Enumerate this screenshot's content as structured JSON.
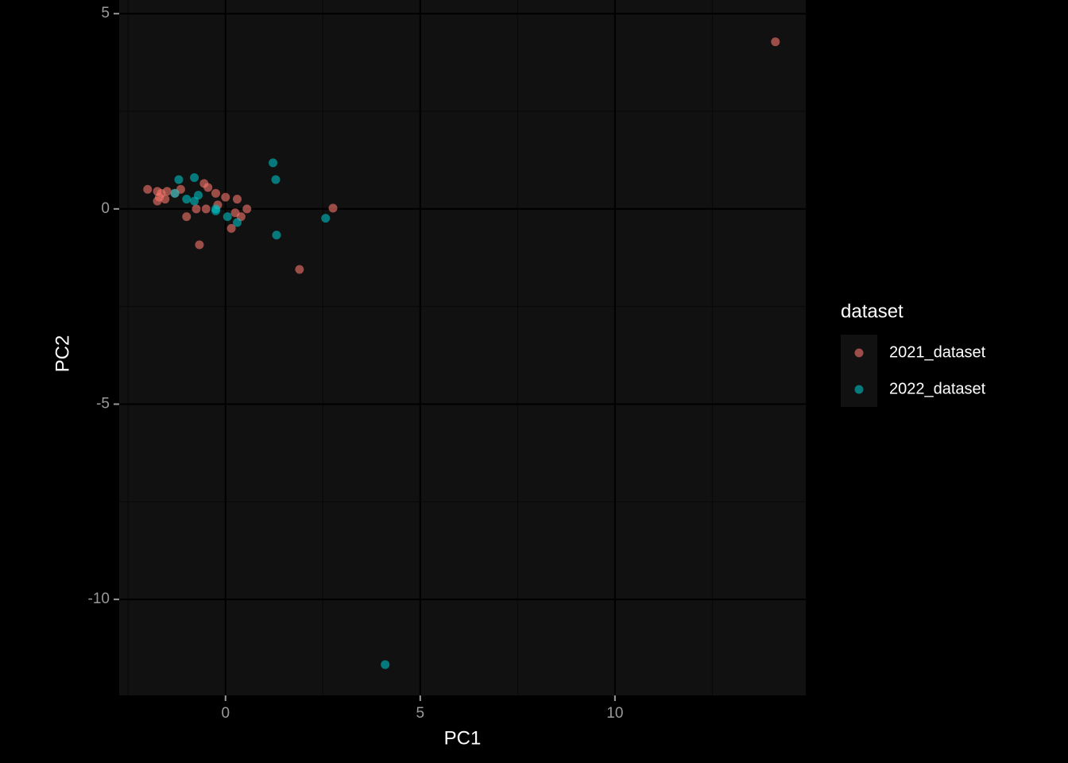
{
  "chart_data": {
    "type": "scatter",
    "x_label": "PC1",
    "y_label": "PC2",
    "legend_title": "dataset",
    "legend": "right",
    "xlim": [
      -2.73,
      14.9
    ],
    "ylim": [
      -12.46,
      5.35
    ],
    "xticks": [
      0,
      5,
      10
    ],
    "yticks": [
      5,
      0,
      -5,
      -10
    ],
    "xminor": [
      -2.5,
      2.5,
      7.5,
      12.5
    ],
    "yminor": [
      2.5,
      -2.5,
      -7.5
    ],
    "grid": true,
    "series": [
      {
        "name": "2021_dataset",
        "color": "#F8766D",
        "x": [
          -2.0,
          -1.75,
          -1.75,
          -1.7,
          -1.65,
          -1.55,
          -1.5,
          -1.3,
          -1.15,
          -1.0,
          -0.75,
          -0.67,
          -0.55,
          -0.45,
          -0.5,
          -0.25,
          -0.2,
          0.0,
          0.15,
          0.25,
          0.3,
          0.4,
          0.55,
          1.9,
          2.76,
          14.12
        ],
        "y": [
          0.5,
          0.45,
          0.2,
          0.3,
          0.4,
          0.25,
          0.45,
          0.4,
          0.5,
          -0.2,
          0.0,
          -0.92,
          0.65,
          0.55,
          0.0,
          0.4,
          0.1,
          0.3,
          -0.5,
          -0.1,
          0.25,
          -0.2,
          0.0,
          -1.55,
          0.02,
          4.28
        ]
      },
      {
        "name": "2022_dataset",
        "color": "#00BFC4",
        "x": [
          -1.2,
          -1.3,
          -1.0,
          -0.8,
          -0.7,
          -0.8,
          -0.25,
          -0.25,
          0.05,
          0.3,
          1.22,
          1.29,
          1.31,
          2.57,
          4.1
        ],
        "y": [
          0.75,
          0.4,
          0.25,
          0.8,
          0.35,
          0.2,
          0.0,
          -0.05,
          -0.2,
          -0.35,
          1.18,
          0.75,
          -0.67,
          -0.24,
          -11.67
        ]
      }
    ]
  }
}
